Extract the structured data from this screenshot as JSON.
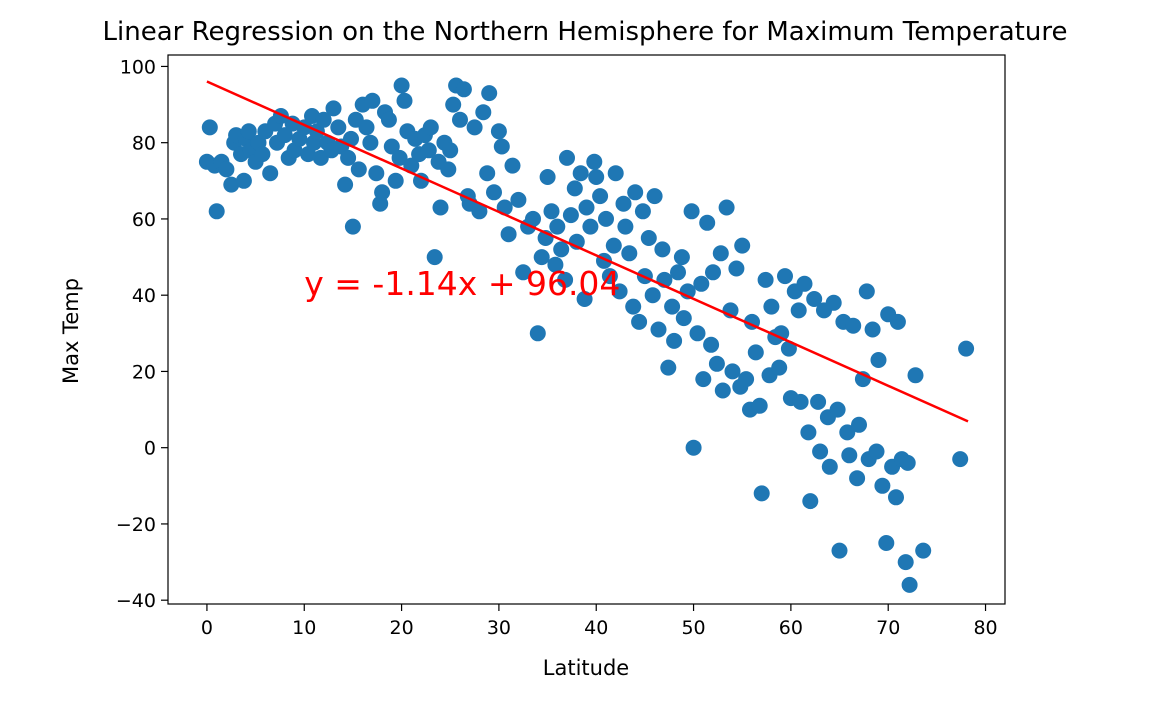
{
  "chart_data": {
    "type": "scatter",
    "title": "Linear Regression on the Northern Hemisphere for Maximum Temperature",
    "xlabel": "Latitude",
    "ylabel": "Max Temp",
    "xlim": [
      -4,
      82
    ],
    "ylim": [
      -41,
      103
    ],
    "xticks": [
      0,
      10,
      20,
      30,
      40,
      50,
      60,
      70,
      80
    ],
    "yticks": [
      -40,
      -20,
      0,
      20,
      40,
      60,
      80,
      100
    ],
    "grid": false,
    "series": [
      {
        "kind": "scatter",
        "color": "#1f77b4",
        "points": [
          [
            0.0,
            75
          ],
          [
            0.3,
            84
          ],
          [
            0.8,
            74
          ],
          [
            1.0,
            62
          ],
          [
            1.5,
            75
          ],
          [
            2.0,
            73
          ],
          [
            2.5,
            69
          ],
          [
            2.8,
            80
          ],
          [
            3.0,
            82
          ],
          [
            3.5,
            77
          ],
          [
            3.8,
            70
          ],
          [
            4.0,
            81
          ],
          [
            4.3,
            83
          ],
          [
            4.5,
            78
          ],
          [
            5.0,
            75
          ],
          [
            5.3,
            80
          ],
          [
            5.7,
            77
          ],
          [
            6.0,
            83
          ],
          [
            6.5,
            72
          ],
          [
            7.0,
            85
          ],
          [
            7.2,
            80
          ],
          [
            7.6,
            87
          ],
          [
            8.0,
            82
          ],
          [
            8.4,
            76
          ],
          [
            8.8,
            85
          ],
          [
            9.0,
            78
          ],
          [
            9.5,
            81
          ],
          [
            10.0,
            84
          ],
          [
            10.4,
            77
          ],
          [
            10.8,
            87
          ],
          [
            11.0,
            80
          ],
          [
            11.3,
            83
          ],
          [
            11.7,
            76
          ],
          [
            12.0,
            86
          ],
          [
            12.4,
            80
          ],
          [
            12.8,
            78
          ],
          [
            13.0,
            89
          ],
          [
            13.5,
            84
          ],
          [
            13.8,
            79
          ],
          [
            14.2,
            69
          ],
          [
            14.5,
            76
          ],
          [
            14.8,
            81
          ],
          [
            15.0,
            58
          ],
          [
            15.3,
            86
          ],
          [
            15.6,
            73
          ],
          [
            16.0,
            90
          ],
          [
            16.4,
            84
          ],
          [
            16.8,
            80
          ],
          [
            17.0,
            91
          ],
          [
            17.4,
            72
          ],
          [
            17.8,
            64
          ],
          [
            18.0,
            67
          ],
          [
            18.3,
            88
          ],
          [
            18.7,
            86
          ],
          [
            19.0,
            79
          ],
          [
            19.4,
            70
          ],
          [
            19.8,
            76
          ],
          [
            20.0,
            95
          ],
          [
            20.3,
            91
          ],
          [
            20.6,
            83
          ],
          [
            21.0,
            74
          ],
          [
            21.4,
            81
          ],
          [
            21.8,
            77
          ],
          [
            22.0,
            70
          ],
          [
            22.4,
            82
          ],
          [
            22.8,
            78
          ],
          [
            23.0,
            84
          ],
          [
            23.4,
            50
          ],
          [
            23.8,
            75
          ],
          [
            24.0,
            63
          ],
          [
            24.4,
            80
          ],
          [
            24.8,
            73
          ],
          [
            25.0,
            78
          ],
          [
            25.3,
            90
          ],
          [
            25.6,
            95
          ],
          [
            26.0,
            86
          ],
          [
            26.4,
            94
          ],
          [
            26.8,
            66
          ],
          [
            27.0,
            64
          ],
          [
            27.5,
            84
          ],
          [
            28.0,
            62
          ],
          [
            28.4,
            88
          ],
          [
            28.8,
            72
          ],
          [
            29.0,
            93
          ],
          [
            29.5,
            67
          ],
          [
            30.0,
            83
          ],
          [
            30.3,
            79
          ],
          [
            30.6,
            63
          ],
          [
            31.0,
            56
          ],
          [
            31.4,
            74
          ],
          [
            32.0,
            65
          ],
          [
            32.5,
            46
          ],
          [
            33.0,
            58
          ],
          [
            33.5,
            60
          ],
          [
            34.0,
            30
          ],
          [
            34.4,
            50
          ],
          [
            34.8,
            55
          ],
          [
            35.0,
            71
          ],
          [
            35.4,
            62
          ],
          [
            35.8,
            48
          ],
          [
            36.0,
            58
          ],
          [
            36.4,
            52
          ],
          [
            36.8,
            44
          ],
          [
            37.0,
            76
          ],
          [
            37.4,
            61
          ],
          [
            37.8,
            68
          ],
          [
            38.0,
            54
          ],
          [
            38.4,
            72
          ],
          [
            38.8,
            39
          ],
          [
            39.0,
            63
          ],
          [
            39.4,
            58
          ],
          [
            39.8,
            75
          ],
          [
            40.0,
            71
          ],
          [
            40.4,
            66
          ],
          [
            40.8,
            49
          ],
          [
            41.0,
            60
          ],
          [
            41.4,
            45
          ],
          [
            41.8,
            53
          ],
          [
            42.0,
            72
          ],
          [
            42.4,
            41
          ],
          [
            42.8,
            64
          ],
          [
            43.0,
            58
          ],
          [
            43.4,
            51
          ],
          [
            43.8,
            37
          ],
          [
            44.0,
            67
          ],
          [
            44.4,
            33
          ],
          [
            44.8,
            62
          ],
          [
            45.0,
            45
          ],
          [
            45.4,
            55
          ],
          [
            45.8,
            40
          ],
          [
            46.0,
            66
          ],
          [
            46.4,
            31
          ],
          [
            46.8,
            52
          ],
          [
            47.0,
            44
          ],
          [
            47.4,
            21
          ],
          [
            47.8,
            37
          ],
          [
            48.0,
            28
          ],
          [
            48.4,
            46
          ],
          [
            48.8,
            50
          ],
          [
            49.0,
            34
          ],
          [
            49.4,
            41
          ],
          [
            49.8,
            62
          ],
          [
            50.0,
            0
          ],
          [
            50.4,
            30
          ],
          [
            50.8,
            43
          ],
          [
            51.0,
            18
          ],
          [
            51.4,
            59
          ],
          [
            51.8,
            27
          ],
          [
            52.0,
            46
          ],
          [
            52.4,
            22
          ],
          [
            52.8,
            51
          ],
          [
            53.0,
            15
          ],
          [
            53.4,
            63
          ],
          [
            53.8,
            36
          ],
          [
            54.0,
            20
          ],
          [
            54.4,
            47
          ],
          [
            54.8,
            16
          ],
          [
            55.0,
            53
          ],
          [
            55.4,
            18
          ],
          [
            55.8,
            10
          ],
          [
            56.0,
            33
          ],
          [
            56.4,
            25
          ],
          [
            56.8,
            11
          ],
          [
            57.0,
            -12
          ],
          [
            57.4,
            44
          ],
          [
            57.8,
            19
          ],
          [
            58.0,
            37
          ],
          [
            58.4,
            29
          ],
          [
            58.8,
            21
          ],
          [
            59.0,
            30
          ],
          [
            59.4,
            45
          ],
          [
            59.8,
            26
          ],
          [
            60.0,
            13
          ],
          [
            60.4,
            41
          ],
          [
            60.8,
            36
          ],
          [
            61.0,
            12
          ],
          [
            61.4,
            43
          ],
          [
            61.8,
            4
          ],
          [
            62.0,
            -14
          ],
          [
            62.4,
            39
          ],
          [
            62.8,
            12
          ],
          [
            63.0,
            -1
          ],
          [
            63.4,
            36
          ],
          [
            63.8,
            8
          ],
          [
            64.0,
            -5
          ],
          [
            64.4,
            38
          ],
          [
            64.8,
            10
          ],
          [
            65.0,
            -27
          ],
          [
            65.4,
            33
          ],
          [
            65.8,
            4
          ],
          [
            66.0,
            -2
          ],
          [
            66.4,
            32
          ],
          [
            66.8,
            -8
          ],
          [
            67.0,
            6
          ],
          [
            67.4,
            18
          ],
          [
            67.8,
            41
          ],
          [
            68.0,
            -3
          ],
          [
            68.4,
            31
          ],
          [
            68.8,
            -1
          ],
          [
            69.0,
            23
          ],
          [
            69.4,
            -10
          ],
          [
            69.8,
            -25
          ],
          [
            70.0,
            35
          ],
          [
            70.4,
            -5
          ],
          [
            70.8,
            -13
          ],
          [
            71.0,
            33
          ],
          [
            71.4,
            -3
          ],
          [
            71.8,
            -30
          ],
          [
            72.0,
            -4
          ],
          [
            72.2,
            -36
          ],
          [
            72.8,
            19
          ],
          [
            73.6,
            -27
          ],
          [
            77.4,
            -3
          ],
          [
            78.0,
            26
          ]
        ]
      },
      {
        "kind": "line",
        "name": "regression",
        "color": "#ff0000",
        "x": [
          0.0,
          78.2
        ],
        "y": [
          96.04,
          6.89
        ]
      }
    ],
    "annotations": [
      {
        "text": "y = -1.14x + 96.04",
        "x": 10,
        "y": 40,
        "color": "#ff0000"
      }
    ]
  }
}
